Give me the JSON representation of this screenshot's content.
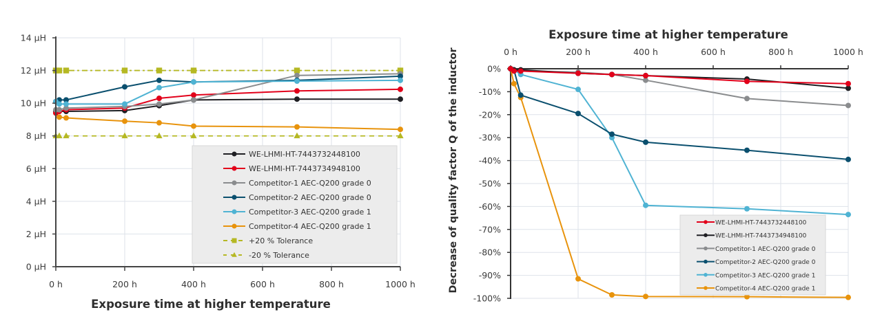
{
  "chart_data": [
    {
      "type": "line",
      "title": "",
      "xlabel": "Exposure time at higher temperature",
      "ylabel": "",
      "x": [
        0,
        10,
        30,
        200,
        300,
        400,
        700,
        1000
      ],
      "xlim": [
        0,
        1000
      ],
      "ylim": [
        0,
        14
      ],
      "x_ticks": [
        0,
        200,
        400,
        600,
        800,
        1000
      ],
      "x_tick_labels": [
        "0 h",
        "200 h",
        "400 h",
        "600 h",
        "800 h",
        "1000 h"
      ],
      "y_ticks": [
        0,
        2,
        4,
        6,
        8,
        10,
        12,
        14
      ],
      "y_tick_labels": [
        "0 µH",
        "2 µH",
        "4 µH",
        "6 µH",
        "8 µH",
        "10 µH",
        "12 µH",
        "14 µH"
      ],
      "unit": "µH",
      "grid": true,
      "legend_position": "bottom-right",
      "series": [
        {
          "name": "WE-LHMI-HT-7443732448100",
          "color": "#1f1f23",
          "marker": "circle",
          "style": "solid",
          "values": [
            9.5,
            9.5,
            9.5,
            9.55,
            9.85,
            10.2,
            10.25,
            10.25
          ]
        },
        {
          "name": "WE-LHMI-HT-7443734948100",
          "color": "#e2001a",
          "marker": "circle",
          "style": "solid",
          "values": [
            9.4,
            9.5,
            9.6,
            9.7,
            10.3,
            10.5,
            10.75,
            10.85
          ]
        },
        {
          "name": "Competitor-1 AEC-Q200 grade 0",
          "color": "#8a8c8e",
          "marker": "circle",
          "style": "solid",
          "values": [
            9.6,
            9.6,
            9.7,
            9.8,
            9.95,
            10.2,
            11.7,
            11.8
          ]
        },
        {
          "name": "Competitor-2 AEC-Q200 grade 0",
          "color": "#0a4f6e",
          "marker": "circle",
          "style": "solid",
          "values": [
            10.1,
            10.2,
            10.2,
            11.0,
            11.4,
            11.3,
            11.4,
            11.65
          ]
        },
        {
          "name": "Competitor-3 AEC-Q200 grade 1",
          "color": "#4fb3d3",
          "marker": "circle",
          "style": "solid",
          "values": [
            10.1,
            9.95,
            9.95,
            9.95,
            10.95,
            11.3,
            11.35,
            11.4
          ]
        },
        {
          "name": "Competitor-4 AEC-Q200 grade 1",
          "color": "#e8930c",
          "marker": "circle",
          "style": "solid",
          "values": [
            9.4,
            9.15,
            9.1,
            8.9,
            8.8,
            8.6,
            8.55,
            8.4
          ]
        },
        {
          "name": "+20 % Tolerance",
          "color": "#b5b823",
          "marker": "square",
          "style": "dashdot",
          "values": [
            12,
            12,
            12,
            12,
            12,
            12,
            12,
            12
          ]
        },
        {
          "name": "-20 % Tolerance",
          "color": "#b5b823",
          "marker": "triangle",
          "style": "dashed",
          "values": [
            8,
            8,
            8,
            8,
            8,
            8,
            8,
            8
          ]
        }
      ]
    },
    {
      "type": "line",
      "title": "Exposure time at higher temperature",
      "xlabel": "Exposure time at higher temperature",
      "ylabel": "Decrease of quality factor Q of the inductor",
      "x": [
        0,
        10,
        30,
        200,
        300,
        400,
        700,
        1000
      ],
      "xlim": [
        0,
        1000
      ],
      "ylim": [
        -100,
        0
      ],
      "x_axis_position": "top",
      "x_ticks": [
        0,
        200,
        400,
        600,
        800,
        1000
      ],
      "x_tick_labels": [
        "0 h",
        "200 h",
        "400 h",
        "600 h",
        "800 h",
        "1000 h"
      ],
      "y_ticks": [
        0,
        -10,
        -20,
        -30,
        -40,
        -50,
        -60,
        -70,
        -80,
        -90,
        -100
      ],
      "y_tick_labels": [
        "0%",
        "-10%",
        "-20%",
        "-30%",
        "-40%",
        "-50%",
        "-60%",
        "-70%",
        "-80%",
        "-90%",
        "-100%"
      ],
      "unit": "%",
      "grid": true,
      "legend_position": "bottom-right",
      "series": [
        {
          "name": "WE-LHMI-HT-7443732448100",
          "color": "#e2001a",
          "marker": "circle",
          "values": [
            0,
            -1,
            -1,
            -2,
            -2.5,
            -3,
            -5.5,
            -6.5
          ]
        },
        {
          "name": "WE-LHMI-HT-7443734948100",
          "color": "#1f1f23",
          "marker": "circle",
          "values": [
            0,
            -0.5,
            -0.5,
            -2,
            -2.5,
            -3,
            -4.5,
            -8.5
          ]
        },
        {
          "name": "Competitor-1 AEC-Q200 grade 0",
          "color": "#8a8c8e",
          "marker": "circle",
          "values": [
            0,
            -0.5,
            -1,
            -1.5,
            -2.5,
            -5,
            -13,
            -16
          ]
        },
        {
          "name": "Competitor-2 AEC-Q200 grade 0",
          "color": "#0a4f6e",
          "marker": "circle",
          "values": [
            0,
            -0.5,
            -11.5,
            -19.5,
            -28.5,
            -32,
            -35.5,
            -39.5
          ]
        },
        {
          "name": "Competitor-3 AEC-Q200 grade 1",
          "color": "#4fb3d3",
          "marker": "circle",
          "values": [
            0,
            -0.5,
            -2.5,
            -9,
            -30,
            -59.5,
            -61,
            -63.5
          ]
        },
        {
          "name": "Competitor-4 AEC-Q200 grade 1",
          "color": "#e8930c",
          "marker": "circle",
          "values": [
            0,
            -6.5,
            -12.5,
            -91.5,
            -98.5,
            -99.2,
            -99.3,
            -99.6
          ]
        }
      ]
    }
  ]
}
